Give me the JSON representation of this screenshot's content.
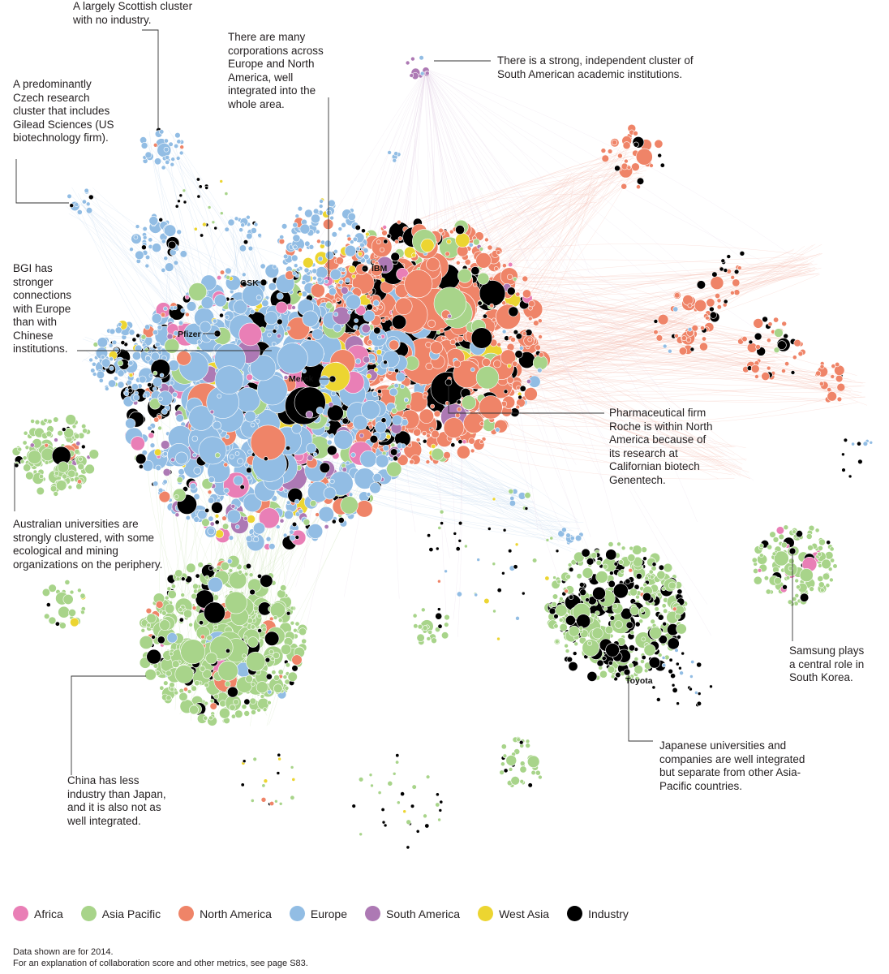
{
  "colors": {
    "africa": "#e97fb6",
    "asia_pacific": "#a8d48a",
    "north_america": "#ef8468",
    "europe": "#92bde4",
    "south_america": "#ad79b4",
    "west_asia": "#ecd531",
    "industry": "#000000",
    "edge_red": "#f4b5a6",
    "edge_blue": "#c8dcf0",
    "edge_green": "#d2e7c2",
    "leader": "#333333"
  },
  "annotations": {
    "scottish": "A largely Scottish cluster with no industry.",
    "czech": "A predominantly Czech research cluster that includes Gilead Sciences (US biotechnology firm).",
    "corporations": "There are many corporations across Europe and North America, well integrated into the whole area.",
    "south_american": "There is a strong, independent cluster of South American academic institutions.",
    "bgi": "BGI has stronger connections with Europe than with Chinese institutions.",
    "roche": "Pharmaceutical firm Roche is within North America because of its research at Californian biotech Genentech.",
    "australian": "Australian universities are strongly clustered, with some ecological and mining organizations on the periphery.",
    "samsung": "Samsung plays a central role in South Korea.",
    "japanese": "Japanese universities and companies are well integrated but separate from other Asia-Pacific countries.",
    "china": "China has less industry than Japan, and it is also not as well integrated."
  },
  "node_labels": {
    "gsk": "GSK",
    "ibm": "IBM",
    "pfizer": "Pfizer",
    "merck": "Merck",
    "toyota": "Toyota"
  },
  "legend": [
    {
      "key": "africa",
      "label": "Africa"
    },
    {
      "key": "asia_pacific",
      "label": "Asia Pacific"
    },
    {
      "key": "north_america",
      "label": "North America"
    },
    {
      "key": "europe",
      "label": "Europe"
    },
    {
      "key": "south_america",
      "label": "South America"
    },
    {
      "key": "west_asia",
      "label": "West Asia"
    },
    {
      "key": "industry",
      "label": "Industry"
    }
  ],
  "footnote": {
    "line1": "Data shown are for 2014.",
    "line2": "For an explanation of collaboration score and other metrics, see page S83."
  }
}
